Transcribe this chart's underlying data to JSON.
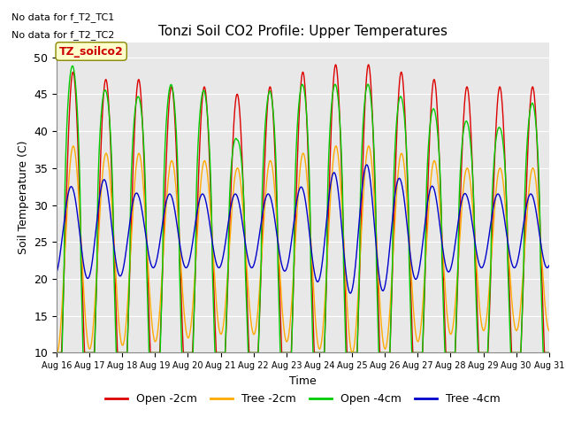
{
  "title": "Tonzi Soil CO2 Profile: Upper Temperatures",
  "xlabel": "Time",
  "ylabel": "Soil Temperature (C)",
  "ylim": [
    10,
    52
  ],
  "yticks": [
    10,
    15,
    20,
    25,
    30,
    35,
    40,
    45,
    50
  ],
  "annotation1": "No data for f_T2_TC1",
  "annotation2": "No data for f_T2_TC2",
  "legend_box_label": "TZ_soilco2",
  "legend_entries": [
    "Open -2cm",
    "Tree -2cm",
    "Open -4cm",
    "Tree -4cm"
  ],
  "line_colors": [
    "#dd0000",
    "#ffaa00",
    "#00cc00",
    "#0000cc"
  ],
  "bg_color": "#e8e8e8",
  "days": 15,
  "points_per_day": 144,
  "start_day": 16
}
